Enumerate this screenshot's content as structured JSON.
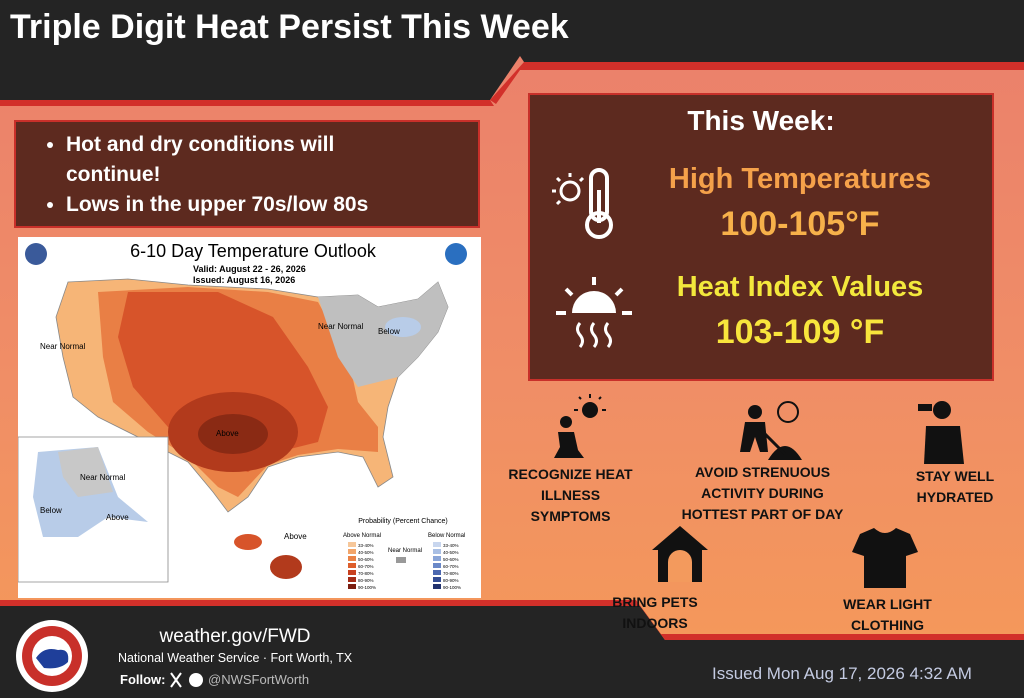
{
  "header": {
    "title": "Triple Digit Heat Persist This Week"
  },
  "bullets": [
    "Hot and dry conditions will continue!",
    "Lows in the upper 70s/low 80s"
  ],
  "map": {
    "title": "6-10 Day Temperature Outlook",
    "valid": "Valid: August 22 - 26, 2026",
    "issued": "Issued: August 16, 2026",
    "labels": [
      "Near Normal",
      "Near Normal",
      "Below",
      "Above",
      "Near Normal",
      "Below",
      "Above",
      "Above"
    ],
    "legend": {
      "title": "Probability (Percent Chance)",
      "above": "Above Normal",
      "below": "Below Normal",
      "near": "Near Normal",
      "ranges": [
        "33-40%",
        "40-50%",
        "50-60%",
        "60-70%",
        "70-80%",
        "80-90%",
        "90-100%"
      ]
    }
  },
  "this_week": {
    "heading": "This Week:",
    "items": [
      {
        "label": "High Temperatures",
        "value": "100-105°F"
      },
      {
        "label": "Heat Index Values",
        "value": "103-109 °F"
      }
    ]
  },
  "tips": [
    "RECOGNIZE HEAT ILLNESS SYMPTOMS",
    "AVOID STRENUOUS ACTIVITY DURING HOTTEST PART OF DAY",
    "STAY WELL HYDRATED",
    "BRING PETS INDOORS",
    "WEAR LIGHT CLOTHING"
  ],
  "footer": {
    "url": "weather.gov/FWD",
    "org": "National Weather Service · Fort Worth, TX",
    "follow": "Follow:",
    "handle": "@NWSFortWorth",
    "issued": "Issued Mon Aug 17, 2026 4:32 AM"
  }
}
